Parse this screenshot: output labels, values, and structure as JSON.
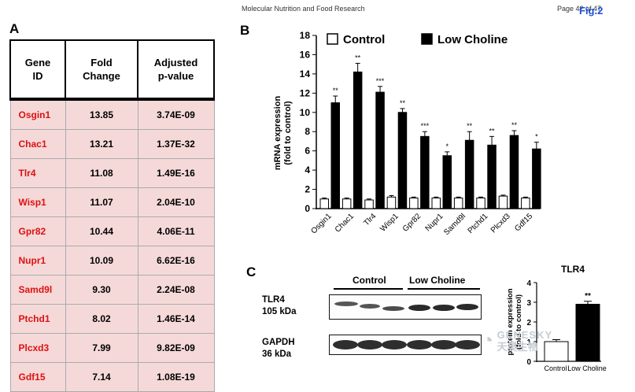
{
  "header": {
    "journal": "Molecular Nutrition and Food Research",
    "page": "Page 42 of 47",
    "fig": "Fig.2"
  },
  "panels": {
    "a": "A",
    "b": "B",
    "c": "C"
  },
  "table": {
    "headers": [
      "Gene\nID",
      "Fold\nChange",
      "Adjusted\np-value"
    ],
    "rows": [
      [
        "Osgin1",
        "13.85",
        "3.74E-09"
      ],
      [
        "Chac1",
        "13.21",
        "1.37E-32"
      ],
      [
        "Tlr4",
        "11.08",
        "1.49E-16"
      ],
      [
        "Wisp1",
        "11.07",
        "2.04E-10"
      ],
      [
        "Gpr82",
        "10.44",
        "4.06E-11"
      ],
      [
        "Nupr1",
        "10.09",
        "6.62E-16"
      ],
      [
        "Samd9l",
        "9.30",
        "2.24E-08"
      ],
      [
        "Ptchd1",
        "8.02",
        "1.46E-14"
      ],
      [
        "Plcxd3",
        "7.99",
        "9.82E-09"
      ],
      [
        "Gdf15",
        "7.14",
        "1.08E-19"
      ]
    ]
  },
  "blot": {
    "groups": [
      "Control",
      "Low Choline"
    ],
    "tlr4": "TLR4\n105 kDa",
    "gapdh": "GAPDH\n36 kDa"
  },
  "watermark": {
    "text": "GENESKY",
    "subtext": "天昊生物"
  },
  "chart_data": [
    {
      "type": "bar",
      "ylabel": "mRNA expression\n(fold to control)",
      "ylim": [
        0,
        18
      ],
      "yticks": [
        0,
        2,
        4,
        6,
        8,
        10,
        12,
        14,
        16,
        18
      ],
      "categories": [
        "Osgin1",
        "Chac1",
        "Tlr4",
        "Wisp1",
        "Gpr82",
        "Nupr1",
        "Samd9l",
        "Ptchd1",
        "Plcxd3",
        "Gdf15"
      ],
      "series": [
        {
          "name": "Control",
          "color": "#ffffff",
          "values": [
            1.0,
            1.0,
            0.9,
            1.2,
            1.1,
            1.1,
            1.1,
            1.1,
            1.3,
            1.1
          ],
          "errors": [
            0.1,
            0.1,
            0.1,
            0.15,
            0.1,
            0.1,
            0.1,
            0.1,
            0.1,
            0.1
          ]
        },
        {
          "name": "Low Choline",
          "color": "#000000",
          "values": [
            11.0,
            14.2,
            12.1,
            10.0,
            7.5,
            5.5,
            7.1,
            6.6,
            7.6,
            6.2
          ],
          "errors": [
            0.7,
            0.9,
            0.6,
            0.4,
            0.5,
            0.4,
            0.9,
            0.9,
            0.5,
            0.7
          ]
        }
      ],
      "annotations": [
        "**",
        "**",
        "***",
        "**",
        "***",
        "*",
        "**",
        "**",
        "**",
        "*"
      ],
      "legend": "top"
    },
    {
      "type": "bar",
      "title": "TLR4",
      "ylabel": "protein expression\n(fold to control)",
      "ylim": [
        0,
        4
      ],
      "yticks": [
        0,
        1,
        2,
        3,
        4
      ],
      "categories": [
        "Control",
        "Low Choline"
      ],
      "values": [
        1.0,
        2.9
      ],
      "errors": [
        0.1,
        0.15
      ],
      "colors": [
        "#ffffff",
        "#000000"
      ],
      "annotations": [
        "",
        "**"
      ]
    }
  ]
}
